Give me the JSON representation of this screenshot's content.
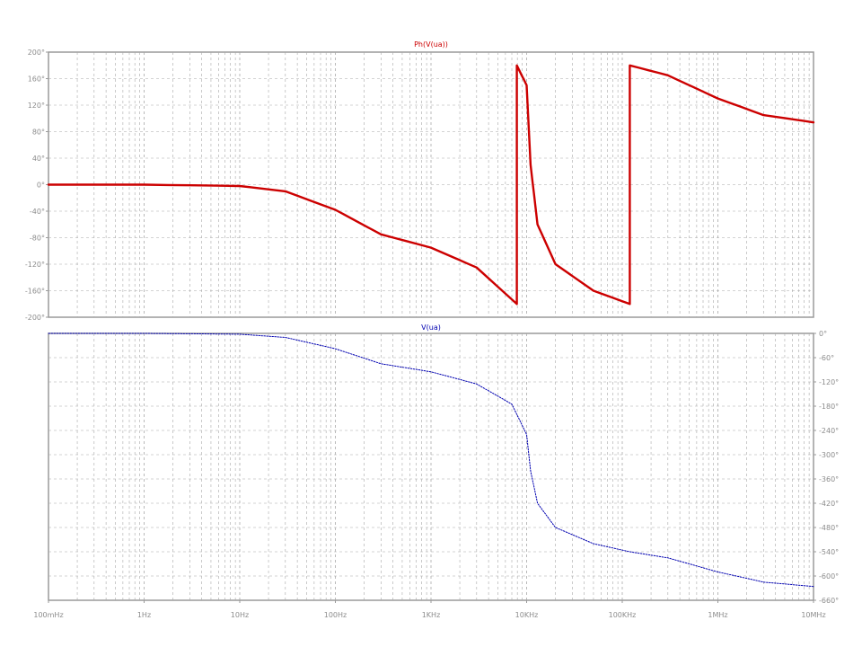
{
  "chart_data": [
    {
      "type": "line",
      "title": "Ph(V(ua))",
      "x_scale": "log",
      "xlim": [
        0.1,
        10000000
      ],
      "ylim": [
        -200,
        200
      ],
      "y_ticks": [
        "200°",
        "160°",
        "120°",
        "80°",
        "40°",
        "0°",
        "-40°",
        "-80°",
        "-120°",
        "-160°",
        "-200°"
      ],
      "series": [
        {
          "color": "#cc0000",
          "style": "solid",
          "x": [
            0.1,
            1,
            10,
            30,
            100,
            300,
            1000,
            3000,
            7900,
            7900,
            10000,
            11000,
            13000,
            20000,
            50000,
            120000,
            120000,
            300000,
            1000000,
            3000000,
            10000000
          ],
          "y": [
            0,
            0,
            -2,
            -10,
            -38,
            -75,
            -95,
            -125,
            -180,
            180,
            150,
            30,
            -60,
            -120,
            -160,
            -180,
            180,
            165,
            130,
            105,
            94
          ]
        }
      ]
    },
    {
      "type": "line",
      "title": "V(ua)",
      "x_scale": "log",
      "xlim": [
        0.1,
        10000000
      ],
      "ylim": [
        -660,
        0
      ],
      "y_ticks": [
        "0°",
        "-60°",
        "-120°",
        "-180°",
        "-240°",
        "-300°",
        "-360°",
        "-420°",
        "-480°",
        "-540°",
        "-600°",
        "-660°"
      ],
      "x_ticks": [
        "100mHz",
        "1Hz",
        "10Hz",
        "100Hz",
        "1KHz",
        "10KHz",
        "100KHz",
        "1MHz",
        "10MHz"
      ],
      "series": [
        {
          "color": "#0000b0",
          "style": "dotted",
          "x": [
            0.1,
            1,
            10,
            30,
            100,
            300,
            1000,
            3000,
            7000,
            10000,
            11000,
            13000,
            20000,
            50000,
            120000,
            300000,
            1000000,
            3000000,
            10000000
          ],
          "y": [
            0,
            0,
            -2,
            -10,
            -38,
            -75,
            -95,
            -125,
            -175,
            -250,
            -340,
            -420,
            -480,
            -520,
            -540,
            -555,
            -590,
            -615,
            -626
          ]
        }
      ]
    }
  ]
}
